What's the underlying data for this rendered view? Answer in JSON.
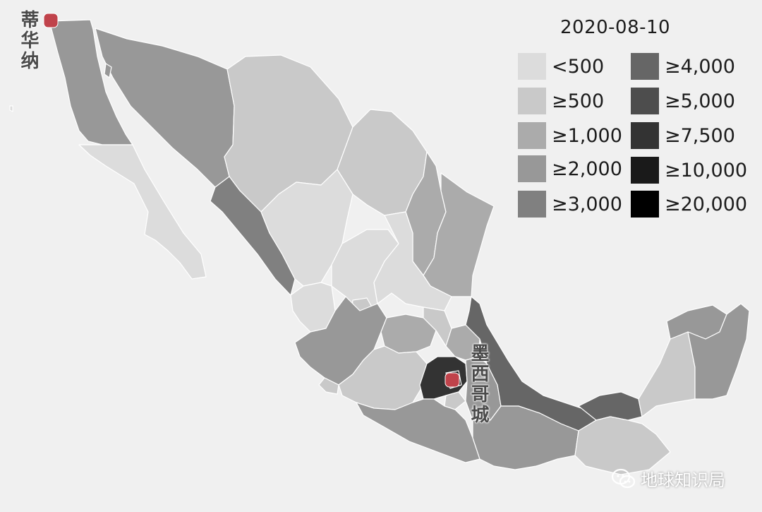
{
  "title": "2020-08-10",
  "legend": [
    {
      "label": "<500",
      "color": "#dcdcdc"
    },
    {
      "label": "≥500",
      "color": "#c9c9c9"
    },
    {
      "label": "≥1,000",
      "color": "#ababab"
    },
    {
      "label": "≥2,000",
      "color": "#989898"
    },
    {
      "label": "≥3,000",
      "color": "#808080"
    },
    {
      "label": "≥4,000",
      "color": "#666666"
    },
    {
      "label": "≥5,000",
      "color": "#4d4d4d"
    },
    {
      "label": "≥7,500",
      "color": "#333333"
    },
    {
      "label": "≥10,000",
      "color": "#1a1a1a"
    },
    {
      "label": "≥20,000",
      "color": "#000000"
    }
  ],
  "cities": [
    {
      "label": "蒂华纳",
      "marker_color": "#c0434b"
    },
    {
      "label": "墨西哥城",
      "marker_color": "#c0434b"
    }
  ],
  "watermark": {
    "text": "地球知识局",
    "icon": "wechat-icon"
  },
  "colors": {
    "background": "#f0f0f0",
    "border": "#ffffff"
  }
}
